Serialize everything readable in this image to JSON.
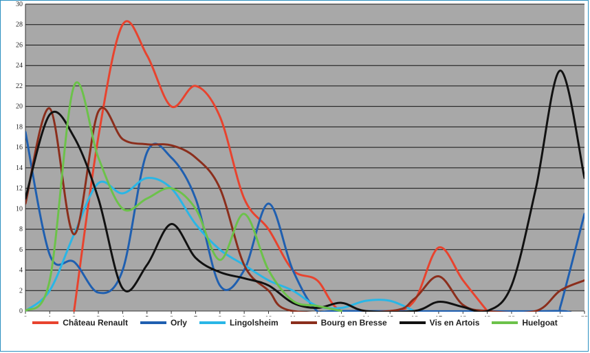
{
  "chart_data": {
    "type": "line",
    "title": "",
    "xlabel": "",
    "ylabel": "",
    "xlim": [
      0,
      23
    ],
    "ylim": [
      0,
      30
    ],
    "x_ticks": [
      "0",
      "1",
      "2",
      "3",
      "4",
      "5",
      "6",
      "7",
      "8",
      "9",
      "10",
      "11",
      "12",
      "13",
      "14",
      "15",
      "16",
      "17",
      "18",
      "19",
      "20",
      "21",
      "22",
      "23"
    ],
    "y_ticks": [
      "0",
      "2",
      "4",
      "6",
      "8",
      "10",
      "12",
      "14",
      "16",
      "18",
      "20",
      "22",
      "24",
      "26",
      "28",
      "30"
    ],
    "grid": true,
    "legend_position": "bottom",
    "plot_background": "#a8a8a8",
    "series": [
      {
        "name": "Château Renault",
        "color": "#e8432e",
        "x": [
          2,
          3,
          4,
          5,
          6,
          7,
          8,
          9,
          10,
          11,
          12,
          13,
          15,
          16,
          17,
          18,
          19
        ],
        "y": [
          0,
          17,
          28,
          25,
          20,
          22,
          19,
          11,
          8,
          4,
          3,
          0,
          0,
          1,
          6.2,
          3,
          0
        ]
      },
      {
        "name": "Orly",
        "color": "#1f5fb0",
        "x": [
          0,
          1,
          2,
          3,
          4,
          5,
          6,
          7,
          8,
          9,
          10,
          11,
          12,
          13,
          21.8,
          22,
          23
        ],
        "y": [
          17.5,
          5.5,
          4.8,
          1.8,
          4,
          15.5,
          15,
          11,
          2.5,
          4,
          10.5,
          4,
          0,
          0,
          0,
          0.4,
          9.5
        ]
      },
      {
        "name": "Lingolsheim",
        "color": "#29b6e6",
        "x": [
          0,
          1,
          2,
          3,
          4,
          5,
          6,
          7,
          8,
          9,
          10,
          11,
          12,
          13,
          14,
          15,
          16
        ],
        "y": [
          0,
          2,
          7.5,
          12.5,
          11.5,
          13,
          12,
          8.5,
          6,
          4.5,
          3,
          2,
          0.5,
          0.3,
          1,
          1,
          0
        ]
      },
      {
        "name": "Bourg en Bresse",
        "color": "#8b2e1c",
        "x": [
          0,
          1,
          2,
          3,
          4,
          5,
          6,
          7,
          8,
          9,
          10,
          11,
          15,
          16,
          17,
          18,
          19,
          21,
          22,
          23
        ],
        "y": [
          10.5,
          19.8,
          7.5,
          19.5,
          16.8,
          16.3,
          16.2,
          15,
          12,
          4.5,
          2,
          0,
          0,
          1.2,
          3.4,
          0.6,
          0,
          0,
          2,
          3
        ]
      },
      {
        "name": "Vis en Artois",
        "color": "#111111",
        "x": [
          0,
          1,
          2,
          3,
          4,
          5,
          6,
          7,
          8,
          9,
          10,
          11,
          12,
          13,
          14,
          16,
          17,
          18,
          19,
          20,
          21,
          22,
          23
        ],
        "y": [
          11,
          19.2,
          17,
          11,
          2.2,
          4.5,
          8.5,
          5.2,
          3.8,
          3.2,
          2.5,
          0.8,
          0.3,
          0.8,
          0,
          0,
          0.9,
          0.4,
          0,
          2.5,
          12,
          23.5,
          13
        ]
      },
      {
        "name": "Huelgoat",
        "color": "#6cc24a",
        "x": [
          0,
          1,
          2,
          3,
          4,
          5,
          6,
          7,
          8,
          9,
          10,
          11,
          12,
          13
        ],
        "y": [
          0,
          3,
          22,
          15,
          10,
          11,
          12,
          10,
          5,
          9.5,
          4,
          1,
          0.5,
          0
        ]
      }
    ]
  }
}
